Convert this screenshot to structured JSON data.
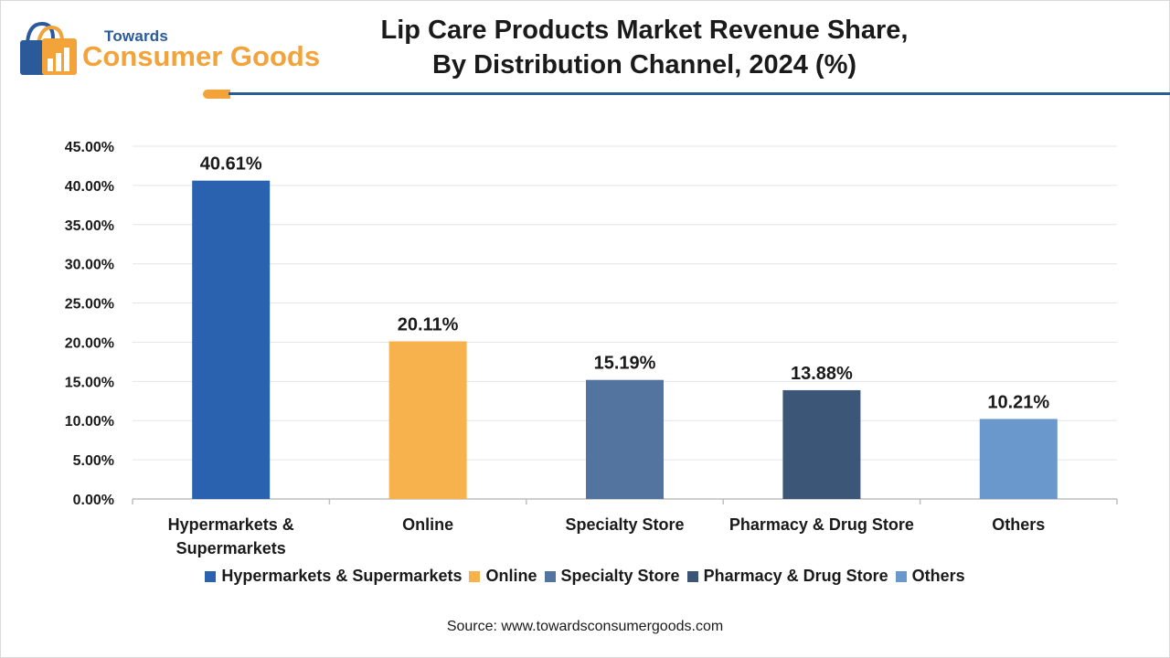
{
  "brand": {
    "top": "Towards",
    "main": "Consumer Goods"
  },
  "title_lines": [
    "Lip Care Products Market Revenue Share,",
    "By Distribution Channel, 2024 (%)"
  ],
  "source": "Source: www.towardsconsumergoods.com",
  "colors": {
    "accent_orange": "#f2a33a",
    "accent_blue": "#2c5d8f",
    "grid": "#e6e6e6",
    "axis": "#bfbfbf"
  },
  "chart_data": {
    "type": "bar",
    "title": "Lip Care Products Market Revenue Share, By Distribution Channel, 2024 (%)",
    "xlabel": "",
    "ylabel": "",
    "ylim": [
      0,
      45
    ],
    "y_ticks": [
      0,
      5,
      10,
      15,
      20,
      25,
      30,
      35,
      40,
      45
    ],
    "y_tick_labels": [
      "0.00%",
      "5.00%",
      "10.00%",
      "15.00%",
      "20.00%",
      "25.00%",
      "30.00%",
      "35.00%",
      "40.00%",
      "45.00%"
    ],
    "grid": true,
    "legend_position": "bottom",
    "categories": [
      {
        "label_lines": [
          "Hypermarkets &",
          "Supermarkets"
        ],
        "legend": "Hypermarkets & Supermarkets",
        "value": 40.61,
        "label": "40.61%",
        "color": "#2a62b0"
      },
      {
        "label_lines": [
          "Online"
        ],
        "legend": "Online",
        "value": 20.11,
        "label": "20.11%",
        "color": "#f7b24e"
      },
      {
        "label_lines": [
          "Specialty Store"
        ],
        "legend": "Specialty Store",
        "value": 15.19,
        "label": "15.19%",
        "color": "#52749f"
      },
      {
        "label_lines": [
          "Pharmacy & Drug Store"
        ],
        "legend": "Pharmacy & Drug Store",
        "value": 13.88,
        "label": "13.88%",
        "color": "#3c5677"
      },
      {
        "label_lines": [
          "Others"
        ],
        "legend": "Others",
        "value": 10.21,
        "label": "10.21%",
        "color": "#6a98cc"
      }
    ]
  }
}
